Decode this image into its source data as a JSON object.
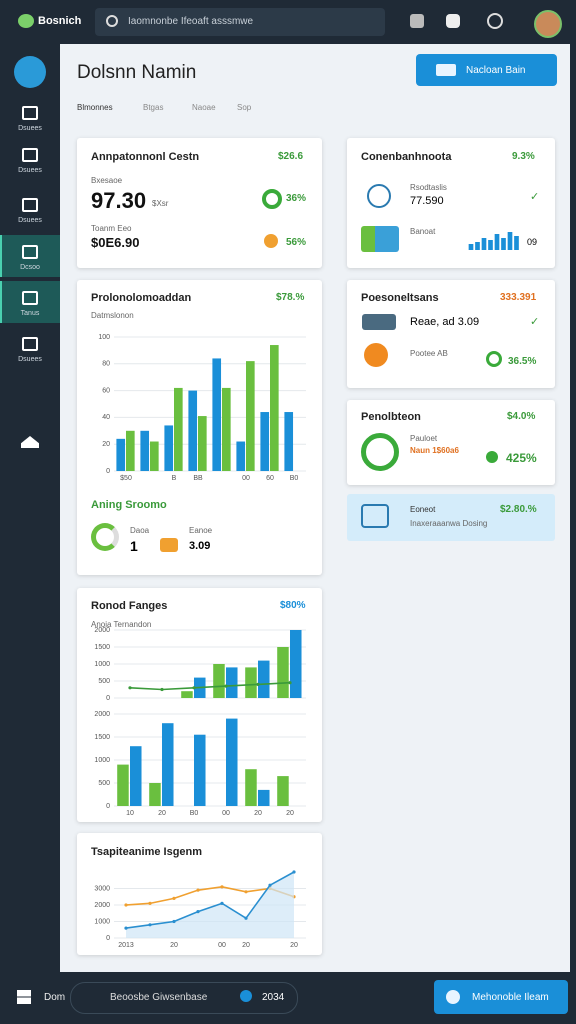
{
  "header": {
    "brand": "Bosnich",
    "search": "Iaomnonbe Ifeoaft asssmwe"
  },
  "sidebar": [
    "Dsuees",
    "Dsuees",
    "Dsuees",
    "Dcsoo",
    "Tanus",
    "Dsuees"
  ],
  "page": {
    "title": "Dolsnn Namin",
    "button": "Nacloan Bain",
    "tabs": [
      "Blmonnes",
      "Btgas",
      "Naoae",
      "Sop"
    ]
  },
  "summary": {
    "title": "Annpatonnonl Cestn",
    "value": "$26.6",
    "label1": "Bxesaoe",
    "big": "97.30",
    "unit": "$Xsr",
    "pct1": "36%",
    "label2": "Toanm Eeo",
    "amount": "$0E6.90",
    "pct2": "56%"
  },
  "production": {
    "title": "Prolonolomoaddan",
    "value": "$78.%",
    "subtitle": "Datmslonon",
    "chart": {
      "type": "bar",
      "ylim": [
        0,
        100
      ],
      "yticks": [
        0,
        20,
        40,
        60,
        80,
        100
      ],
      "categories": [
        "$50",
        null,
        "B",
        "BB",
        null,
        "00",
        "60",
        "B0"
      ],
      "series": [
        {
          "color": "#1a8fd8",
          "values": [
            24,
            30,
            34,
            60,
            84,
            22,
            44,
            44
          ]
        },
        {
          "color": "#6abf3f",
          "values": [
            30,
            22,
            62,
            41,
            62,
            82,
            94,
            null
          ]
        }
      ]
    },
    "rating_title": "Aning Sroomo",
    "rating_label1": "Daoa",
    "rating_value1": "1",
    "rating_label2": "Eanoe",
    "rating_value2": "3.09"
  },
  "ranges": {
    "title": "Ronod Fanges",
    "value": "$80%",
    "subtitle": "Anoia Ternandon",
    "chart_top": {
      "type": "bar",
      "ylim": [
        0,
        2000
      ],
      "yticks": [
        0,
        500,
        1000,
        1500,
        2000
      ],
      "series": [
        {
          "color": "#6abf3f",
          "values": [
            null,
            null,
            200,
            1000,
            900,
            1500
          ]
        },
        {
          "color": "#1a8fd8",
          "values": [
            null,
            null,
            600,
            900,
            1100,
            2000
          ]
        },
        {
          "color": "#3a9a3a",
          "type": "line",
          "values": [
            300,
            250,
            300,
            350,
            400,
            450
          ]
        }
      ]
    },
    "chart_bottom": {
      "type": "bar",
      "ylim": [
        0,
        2000
      ],
      "yticks": [
        0,
        500,
        1000,
        1500,
        2000
      ],
      "categories": [
        "10",
        "20",
        "B0",
        "00",
        "20",
        "20"
      ],
      "series": [
        {
          "color": "#6abf3f",
          "values": [
            900,
            500,
            null,
            null,
            800,
            650
          ]
        },
        {
          "color": "#1a8fd8",
          "values": [
            1300,
            1800,
            1550,
            1900,
            350,
            null
          ]
        }
      ]
    }
  },
  "trend": {
    "title": "Tsapiteanime Isgenm",
    "chart": {
      "type": "line",
      "ylim": [
        0,
        4000
      ],
      "yticks": [
        0,
        1000,
        2000,
        3000
      ],
      "categories": [
        "2013",
        null,
        "20",
        null,
        "00",
        "20",
        null,
        "20"
      ],
      "series": [
        {
          "color": "#f0a030",
          "values": [
            2000,
            2100,
            2400,
            2900,
            3100,
            2800,
            3000,
            2500
          ]
        },
        {
          "color": "#2a8fd0",
          "values": [
            600,
            800,
            1000,
            1600,
            2100,
            1200,
            3200,
            4000
          ]
        }
      ]
    }
  },
  "right": {
    "card1": {
      "title": "Conenbanhnoota",
      "value": "9.3%",
      "item1_label": "Rsodtaslis",
      "item1_value": "77.590",
      "item2_label": "Banoat",
      "item2_value": "09",
      "chart": {
        "type": "bar",
        "ylim": [
          0,
          10
        ],
        "series": [
          {
            "color": "#1a8fd8",
            "values": [
              3,
              4,
              6,
              5,
              8,
              6,
              9,
              7
            ]
          }
        ]
      }
    },
    "card2": {
      "title": "Poesoneltsans",
      "value": "333.391",
      "item1": "Reae, ad 3.09",
      "item2": "Pootee AB",
      "pct": "36.5%"
    },
    "card3": {
      "title": "Penolbteon",
      "value": "$4.0%",
      "label": "Pauloet",
      "sub": "Naun 1$60a6",
      "pct": "425%"
    },
    "card4": {
      "title": "Eoneot",
      "value": "$2.80.%",
      "sub": "Inaxeraaanwa Dosing"
    }
  },
  "taskbar": {
    "label": "Dom",
    "pill": "Beoosbe Giwsenbase",
    "pill_value": "2034",
    "button": "Mehonoble Ileam"
  }
}
